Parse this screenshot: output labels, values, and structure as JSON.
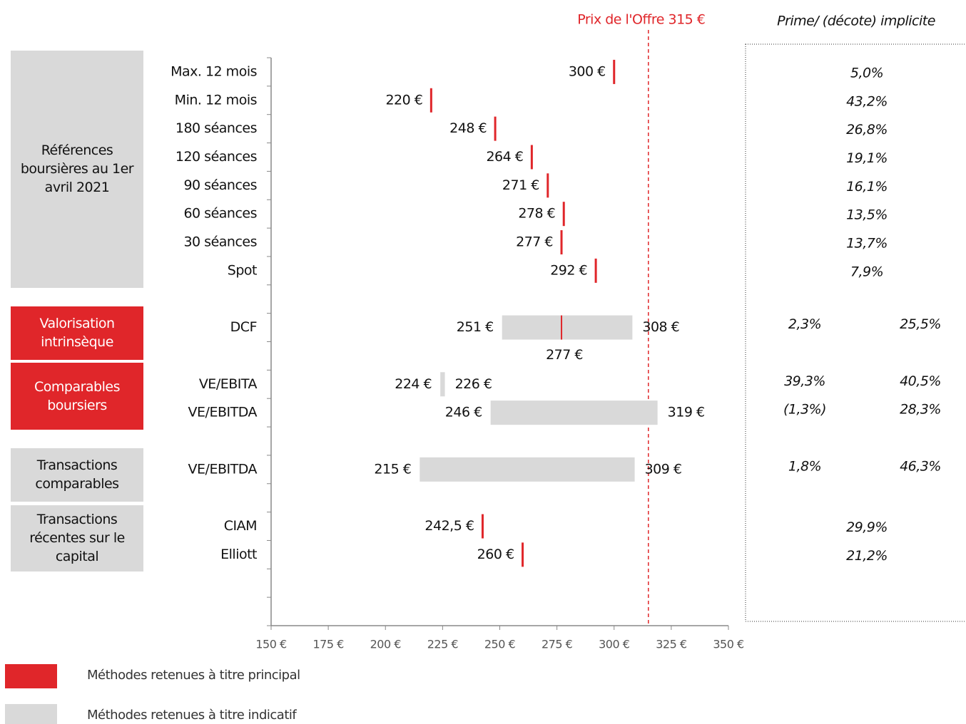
{
  "chart_data": {
    "type": "football-field",
    "offer_label": "Prix de l'Offre 315 €",
    "offer_price": 315,
    "offer_color": "#e0262a",
    "premium_header": "Prime/ (décote) implicite",
    "categories": [
      "Max. 12 mois",
      "Min. 12 mois",
      "180 séances",
      "120 séances",
      "90 séances",
      "60 séances",
      "30 séances",
      "Spot",
      null,
      "DCF",
      null,
      "VE/EBITA",
      "VE/EBITDA",
      null,
      "VE/EBITDA",
      null,
      "CIAM",
      "Elliott",
      null,
      null
    ],
    "values": [
      300,
      220,
      248,
      264,
      271,
      278,
      277,
      292,
      null,
      277,
      null,
      null,
      null,
      null,
      null,
      null,
      242.5,
      260,
      null,
      null
    ],
    "value_labels": [
      "300 €",
      "220 €",
      "248 €",
      "264 €",
      "271 €",
      "278 €",
      "277 €",
      "292 €",
      null,
      "277 €",
      null,
      null,
      null,
      null,
      null,
      null,
      "242,5 €",
      "260 €",
      null,
      null
    ],
    "low": [
      null,
      null,
      null,
      null,
      null,
      null,
      null,
      null,
      null,
      251,
      null,
      224,
      246,
      null,
      215,
      null,
      null,
      null,
      null,
      null
    ],
    "low_labels": [
      null,
      null,
      null,
      null,
      null,
      null,
      null,
      null,
      null,
      "251 €",
      null,
      "224 €",
      "246 €",
      null,
      "215 €",
      null,
      null,
      null,
      null,
      null
    ],
    "high": [
      null,
      null,
      null,
      null,
      null,
      null,
      null,
      null,
      null,
      308,
      null,
      226,
      319,
      null,
      309,
      null,
      null,
      null,
      null,
      null
    ],
    "high_labels": [
      null,
      null,
      null,
      null,
      null,
      null,
      null,
      null,
      null,
      "308 €",
      null,
      "226 €",
      "319 €",
      null,
      "309 €",
      null,
      null,
      null,
      null,
      null
    ],
    "premiums": [
      "5,0%",
      "43,2%",
      "26,8%",
      "19,1%",
      "16,1%",
      "13,5%",
      "13,7%",
      "7,9%",
      null,
      null,
      null,
      null,
      null,
      null,
      null,
      null,
      "29,9%",
      "21,2%",
      null,
      null
    ],
    "premiums_left": [
      null,
      null,
      null,
      null,
      null,
      null,
      null,
      null,
      null,
      "2,3%",
      null,
      "39,3%",
      "(1,3%)",
      null,
      "1,8%",
      null,
      null,
      null,
      null,
      null
    ],
    "premiums_right": [
      null,
      null,
      null,
      null,
      null,
      null,
      null,
      null,
      null,
      "25,5%",
      null,
      "40,5%",
      "28,3%",
      null,
      "46,3%",
      null,
      null,
      null,
      null,
      null
    ],
    "marker_color": "#e0262a",
    "bar_color": "#d9d9d9",
    "groups": [
      {
        "label": "Références boursières au 1er avril 2021",
        "rows": [
          0,
          7
        ],
        "color": "#d9d9d9"
      },
      {
        "label": "Valorisation intrinsèque",
        "rows": [
          9,
          9
        ],
        "color": "#e0262a"
      },
      {
        "label": "Comparables boursiers",
        "rows": [
          11,
          12
        ],
        "color": "#e0262a"
      },
      {
        "label": "Transactions comparables",
        "rows": [
          14,
          14
        ],
        "color": "#d9d9d9"
      },
      {
        "label": "Transactions récentes sur le capital",
        "rows": [
          16,
          17
        ],
        "color": "#d9d9d9"
      }
    ],
    "xlim": [
      150,
      350
    ],
    "xticks": [
      {
        "value": 150,
        "label": "150 €"
      },
      {
        "value": 175,
        "label": "175 €"
      },
      {
        "value": 200,
        "label": "200 €"
      },
      {
        "value": 225,
        "label": "225 €"
      },
      {
        "value": 250,
        "label": "250 €"
      },
      {
        "value": 275,
        "label": "275 €"
      },
      {
        "value": 300,
        "label": "300 €"
      },
      {
        "value": 325,
        "label": "325 €"
      },
      {
        "value": 350,
        "label": "350 €"
      }
    ],
    "legend": [
      {
        "label": "Méthodes retenues à titre principal",
        "color": "#e0262a"
      },
      {
        "label": "Méthodes retenues à titre indicatif",
        "color": "#d9d9d9"
      }
    ]
  }
}
